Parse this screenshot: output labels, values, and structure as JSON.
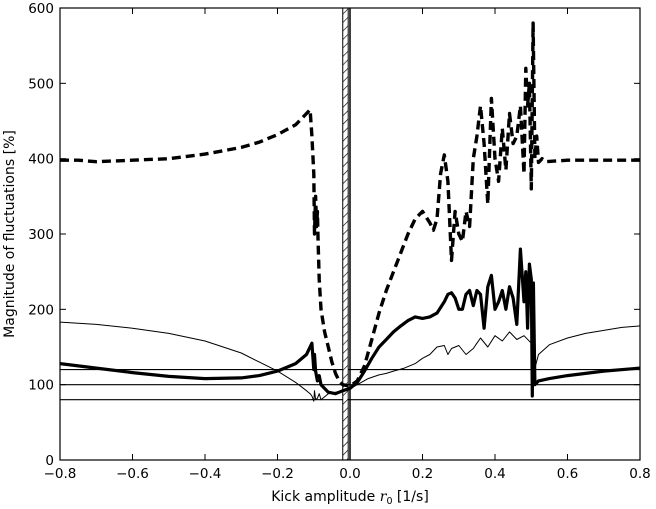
{
  "chart_data": {
    "type": "line",
    "title": "",
    "xlabel": "Kick amplitude r_0 [1/s]",
    "xlabel_parts": {
      "prefix": "Kick amplitude ",
      "symbol": "r",
      "subscript": "0",
      "suffix": " [1/s]"
    },
    "ylabel": "Magnitude of fluctuations [%]",
    "xlim": [
      -0.8,
      0.8
    ],
    "ylim": [
      0,
      600
    ],
    "xticks": [
      -0.8,
      -0.6,
      -0.4,
      -0.2,
      0.0,
      0.2,
      0.4,
      0.6,
      0.8
    ],
    "xtick_labels": [
      "−0.8",
      "−0.6",
      "−0.4",
      "−0.2",
      "0.0",
      "0.2",
      "0.4",
      "0.6",
      "0.8"
    ],
    "yticks": [
      0,
      100,
      200,
      300,
      400,
      500,
      600
    ],
    "ytick_labels": [
      "0",
      "100",
      "200",
      "300",
      "400",
      "500",
      "600"
    ],
    "grid": false,
    "legend": "none",
    "hlines": [
      80,
      100,
      120
    ],
    "vline": 0.0,
    "hatched_band": [
      -0.02,
      -0.005
    ],
    "colors": {
      "line": "#000000",
      "background": "#ffffff"
    },
    "series": [
      {
        "style": "dashed-thick",
        "x": [
          -0.8,
          -0.75,
          -0.7,
          -0.6,
          -0.5,
          -0.4,
          -0.3,
          -0.25,
          -0.2,
          -0.15,
          -0.12,
          -0.11,
          -0.105,
          -0.1,
          -0.098,
          -0.095,
          -0.092,
          -0.09,
          -0.088,
          -0.085,
          -0.08,
          -0.07,
          -0.06,
          -0.05,
          -0.04,
          -0.03,
          -0.02,
          0.0,
          0.02,
          0.04,
          0.06,
          0.08,
          0.1,
          0.12,
          0.14,
          0.16,
          0.18,
          0.2,
          0.22,
          0.23,
          0.24,
          0.25,
          0.26,
          0.27,
          0.28,
          0.29,
          0.3,
          0.31,
          0.32,
          0.33,
          0.34,
          0.35,
          0.36,
          0.37,
          0.38,
          0.39,
          0.4,
          0.41,
          0.42,
          0.43,
          0.44,
          0.45,
          0.46,
          0.47,
          0.48,
          0.485,
          0.49,
          0.495,
          0.5,
          0.505,
          0.51,
          0.515,
          0.52,
          0.53,
          0.54,
          0.6,
          0.7,
          0.8
        ],
        "y": [
          398,
          398,
          396,
          398,
          400,
          406,
          415,
          422,
          432,
          445,
          460,
          465,
          430,
          380,
          300,
          350,
          310,
          330,
          290,
          240,
          200,
          170,
          150,
          130,
          115,
          105,
          100,
          98,
          105,
          125,
          160,
          195,
          225,
          250,
          275,
          300,
          320,
          330,
          315,
          305,
          320,
          380,
          405,
          370,
          265,
          330,
          300,
          290,
          330,
          310,
          400,
          430,
          470,
          420,
          340,
          480,
          400,
          370,
          440,
          385,
          460,
          420,
          430,
          470,
          380,
          520,
          470,
          500,
          360,
          580,
          400,
          430,
          395,
          400,
          396,
          398,
          398,
          398
        ]
      },
      {
        "style": "solid-thick",
        "x": [
          -0.8,
          -0.7,
          -0.6,
          -0.5,
          -0.4,
          -0.3,
          -0.25,
          -0.2,
          -0.15,
          -0.12,
          -0.105,
          -0.1,
          -0.098,
          -0.095,
          -0.09,
          -0.085,
          -0.08,
          -0.06,
          -0.04,
          -0.02,
          0.0,
          0.02,
          0.04,
          0.06,
          0.08,
          0.1,
          0.12,
          0.14,
          0.16,
          0.18,
          0.2,
          0.22,
          0.24,
          0.26,
          0.27,
          0.28,
          0.29,
          0.3,
          0.31,
          0.32,
          0.33,
          0.34,
          0.35,
          0.36,
          0.37,
          0.38,
          0.39,
          0.4,
          0.41,
          0.42,
          0.43,
          0.44,
          0.45,
          0.46,
          0.47,
          0.48,
          0.485,
          0.49,
          0.495,
          0.5,
          0.503,
          0.506,
          0.51,
          0.52,
          0.55,
          0.6,
          0.7,
          0.8
        ],
        "y": [
          128,
          122,
          116,
          111,
          108,
          109,
          112,
          118,
          128,
          140,
          155,
          120,
          140,
          118,
          105,
          112,
          100,
          90,
          88,
          92,
          95,
          103,
          118,
          135,
          150,
          160,
          170,
          178,
          185,
          190,
          188,
          190,
          195,
          210,
          220,
          222,
          215,
          200,
          200,
          220,
          225,
          205,
          225,
          220,
          175,
          230,
          245,
          200,
          210,
          225,
          200,
          230,
          215,
          180,
          280,
          210,
          250,
          175,
          260,
          240,
          85,
          235,
          100,
          105,
          108,
          112,
          118,
          122
        ]
      },
      {
        "style": "solid-thin",
        "x": [
          -0.8,
          -0.7,
          -0.6,
          -0.5,
          -0.4,
          -0.3,
          -0.25,
          -0.2,
          -0.15,
          -0.12,
          -0.11,
          -0.105,
          -0.1,
          -0.098,
          -0.095,
          -0.09,
          -0.085,
          -0.08,
          -0.06,
          -0.04,
          -0.02,
          0.0,
          0.02,
          0.05,
          0.08,
          0.1,
          0.12,
          0.15,
          0.18,
          0.2,
          0.22,
          0.24,
          0.26,
          0.27,
          0.28,
          0.3,
          0.32,
          0.34,
          0.35,
          0.36,
          0.38,
          0.4,
          0.42,
          0.44,
          0.46,
          0.48,
          0.5,
          0.505,
          0.51,
          0.52,
          0.55,
          0.6,
          0.65,
          0.7,
          0.75,
          0.8
        ],
        "y": [
          183,
          180,
          175,
          168,
          158,
          142,
          130,
          118,
          103,
          92,
          88,
          85,
          78,
          92,
          80,
          82,
          88,
          80,
          88,
          90,
          92,
          95,
          100,
          108,
          113,
          115,
          118,
          122,
          128,
          135,
          140,
          150,
          152,
          140,
          148,
          152,
          140,
          148,
          155,
          162,
          150,
          165,
          158,
          170,
          160,
          165,
          155,
          125,
          122,
          140,
          153,
          162,
          168,
          172,
          176,
          178
        ]
      }
    ]
  }
}
